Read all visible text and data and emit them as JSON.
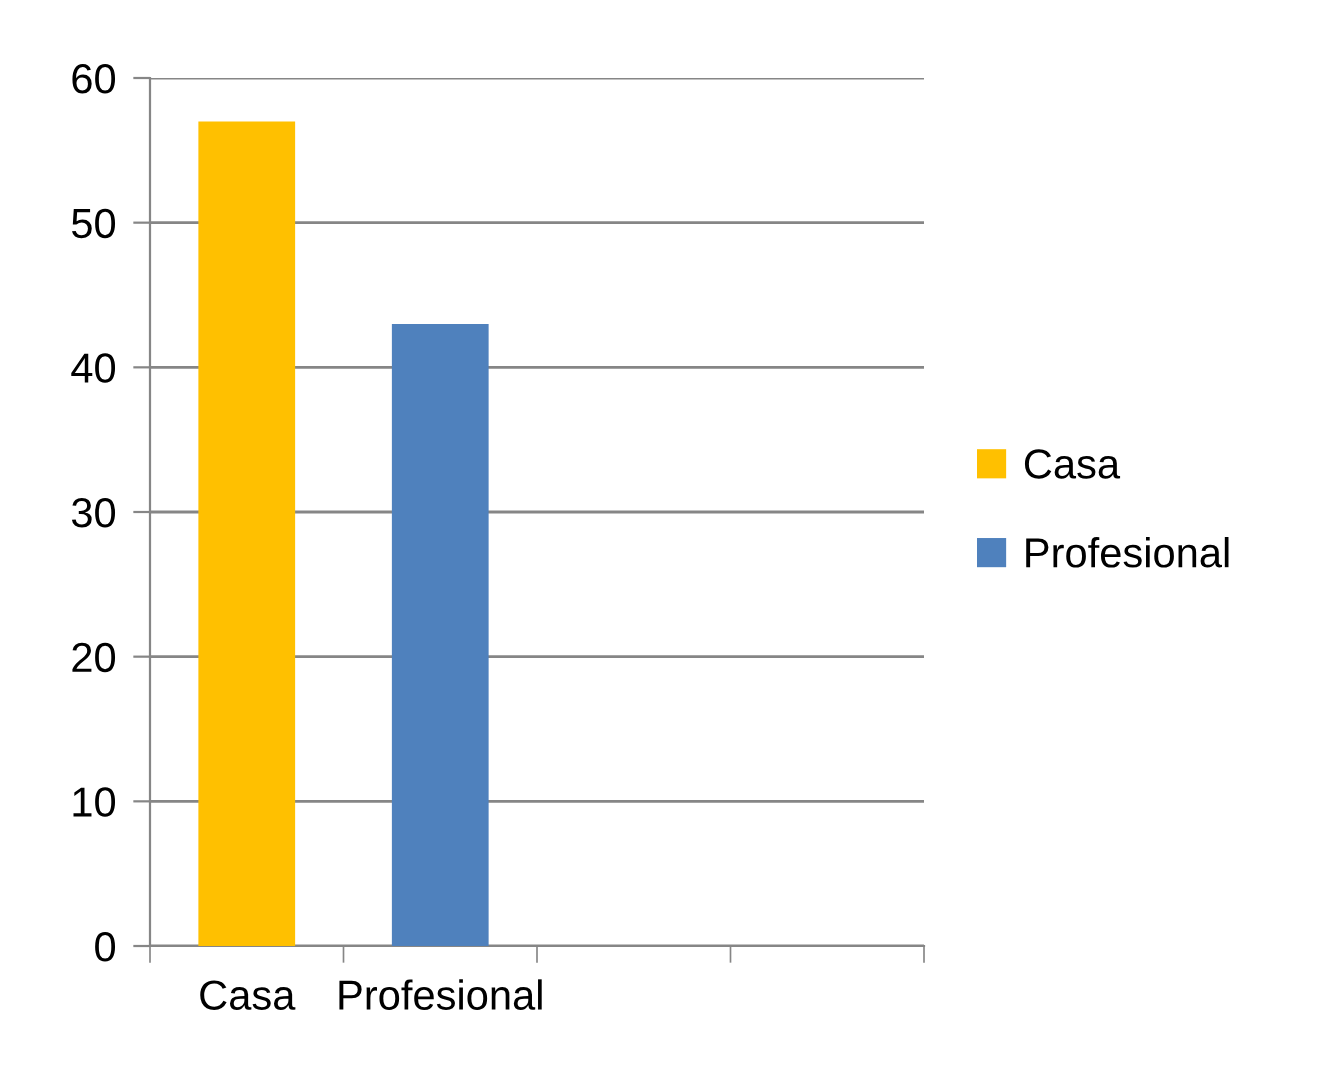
{
  "chart_data": {
    "type": "bar",
    "categories": [
      "Casa",
      "Profesional",
      null,
      null
    ],
    "series": [
      {
        "name": "Casa",
        "color": "#ffc000",
        "values": [
          57,
          null,
          null,
          null
        ]
      },
      {
        "name": "Profesional",
        "color": "#4f81bd",
        "values": [
          null,
          43,
          null,
          null
        ]
      }
    ],
    "ylim": [
      0,
      60
    ],
    "yticks": [
      0,
      10,
      20,
      30,
      40,
      50,
      60
    ],
    "grid": "y",
    "legend": "right"
  }
}
